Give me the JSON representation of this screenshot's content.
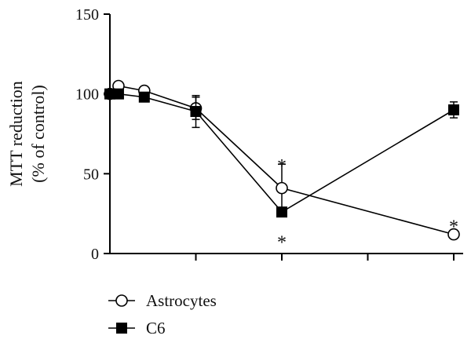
{
  "chart_data": {
    "type": "line",
    "title": "",
    "ylabel_lines": [
      "MTT reduction",
      "(% of control)"
    ],
    "xlabel": "",
    "ylim": [
      0,
      150
    ],
    "yticks": [
      0,
      50,
      100,
      150
    ],
    "xticks": [
      1,
      2,
      3,
      4,
      5
    ],
    "xlim": [
      0,
      5
    ],
    "grid": false,
    "legend_position": "bottom-left",
    "series": [
      {
        "name": "Astrocytes",
        "marker": "open-circle",
        "color": "#000000",
        "x": [
          0,
          0.1,
          0.4,
          1,
          2,
          4
        ],
        "y": [
          100,
          105,
          102,
          91,
          41,
          12
        ],
        "err": [
          0,
          0,
          0,
          7,
          15,
          0
        ]
      },
      {
        "name": "C6",
        "marker": "filled-square",
        "color": "#000000",
        "x": [
          0,
          0.1,
          0.4,
          1,
          2,
          4
        ],
        "y": [
          100,
          100,
          98,
          89,
          26,
          90
        ],
        "err": [
          0,
          0,
          0,
          10,
          0,
          5
        ]
      }
    ],
    "annotations": [
      {
        "text": "*",
        "x": 2,
        "y": 58
      },
      {
        "text": "*",
        "x": 2,
        "y": 10
      },
      {
        "text": "*",
        "x": 4,
        "y": 20
      }
    ]
  }
}
